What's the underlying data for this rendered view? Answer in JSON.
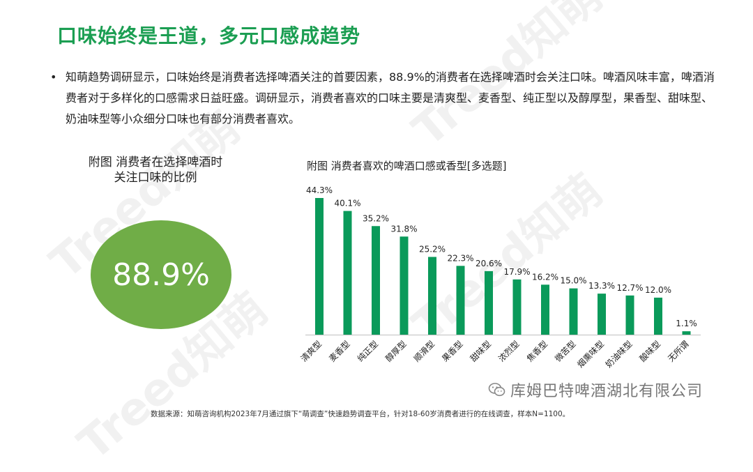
{
  "page": {
    "title": "口味始终是王道，多元口感成趋势",
    "bullet_text": "知萌趋势调研显示，口味始终是消费者选择啤酒关注的首要因素，88.9%的消费者在选择啤酒时会关注口味。啤酒风味丰富，啤酒消费者对于多样化的口感需求日益旺盛。调研显示，消费者喜欢的口味主要是清爽型、麦香型、纯正型以及醇厚型，果香型、甜味型、奶油味型等小众细分口味也有部分消费者喜欢。",
    "left_caption_line1": "附图 消费者在选择啤酒时",
    "left_caption_line2": "关注口味的比例",
    "highlight_value": "88.9%",
    "source_note": "数据来源：知萌咨询机构2023年7月通过旗下“萌调查”快速趋势调查平台，针对18-60岁消费者进行的在线调查，样本N=1100。",
    "wechat_account": "库姆巴特啤酒湖北有限公司",
    "watermark_text": "Treed知萌"
  },
  "colors": {
    "title": "#1b9e52",
    "bar": "#0a9a5a",
    "circle": "#70ad47"
  },
  "chart_data": {
    "type": "bar",
    "title": "附图 消费者喜欢的啤酒口感或香型[多选题]",
    "categories": [
      "清爽型",
      "麦香型",
      "纯正型",
      "醇厚型",
      "顺滑型",
      "果香型",
      "甜味型",
      "浓烈型",
      "焦香型",
      "微苦型",
      "烟熏味型",
      "奶油味型",
      "酸味型",
      "无所谓"
    ],
    "values": [
      44.3,
      40.1,
      35.2,
      31.8,
      25.2,
      22.3,
      20.6,
      17.9,
      16.2,
      15.0,
      13.3,
      12.7,
      12.0,
      1.1
    ],
    "value_labels": [
      "44.3%",
      "40.1%",
      "35.2%",
      "31.8%",
      "25.2%",
      "22.3%",
      "20.6%",
      "17.9%",
      "16.2%",
      "15.0%",
      "13.3%",
      "12.7%",
      "12.0%",
      "1.1%"
    ],
    "ylim": [
      0,
      50
    ],
    "grid": false,
    "legend": "none",
    "xlabel": "",
    "ylabel": ""
  }
}
